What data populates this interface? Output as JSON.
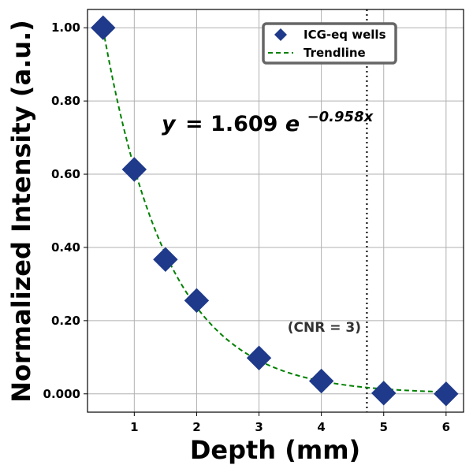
{
  "chart_data": {
    "type": "scatter",
    "title": "",
    "xlabel": "Depth (mm)",
    "ylabel": "Normalized Intensity (a.u.)",
    "xlim": [
      0.25,
      6.28
    ],
    "ylim": [
      -0.05,
      1.05
    ],
    "xticks": [
      "1",
      "2",
      "3",
      "4",
      "5",
      "6"
    ],
    "xtick_values": [
      1,
      2,
      3,
      4,
      5,
      6
    ],
    "yticks": [
      "0.000",
      "0.20",
      "0.40",
      "0.60",
      "0.80",
      "1.00"
    ],
    "ytick_values": [
      0,
      0.2,
      0.4,
      0.6,
      0.8,
      1.0
    ],
    "grid": true,
    "legend_position": "top-right",
    "series": [
      {
        "name": "ICG-eq wells",
        "marker": "diamond",
        "color": "#1f3a8a",
        "x": [
          0.5,
          1.0,
          1.5,
          2.0,
          3.0,
          4.0,
          5.0,
          6.0
        ],
        "y": [
          1.0,
          0.613,
          0.367,
          0.255,
          0.098,
          0.035,
          0.002,
          0.0
        ]
      },
      {
        "name": "Trendline",
        "style": "dashed",
        "color": "#008000",
        "fit": {
          "a": 1.609,
          "b": -0.958
        }
      }
    ],
    "vline": {
      "x": 4.73,
      "style": "dotted",
      "color": "#333333"
    },
    "annotations": {
      "equation_y": "y",
      "equation_eq": "= 1.609",
      "equation_e": "e",
      "equation_exp": "−0.958x",
      "cnr": "(CNR = 3)"
    }
  }
}
